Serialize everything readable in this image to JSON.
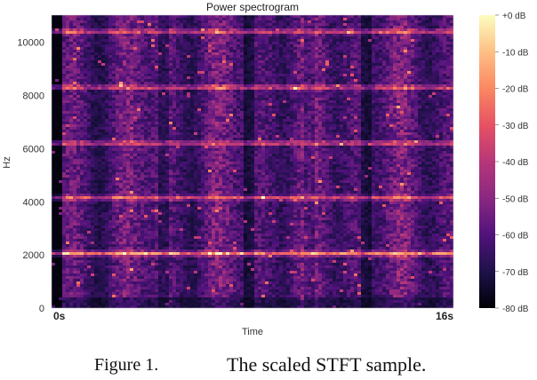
{
  "chart_data": {
    "type": "heatmap",
    "title": "Power spectrogram",
    "xlabel": "Time",
    "ylabel": "Hz",
    "x_ticks": [
      "0s",
      "16s"
    ],
    "xlim": [
      0,
      16
    ],
    "y_ticks": [
      0,
      2000,
      4000,
      6000,
      8000,
      10000
    ],
    "ylim": [
      0,
      11025
    ],
    "colorbar": {
      "ticks": [
        "+0 dB",
        "-10 dB",
        "-20 dB",
        "-30 dB",
        "-40 dB",
        "-50 dB",
        "-60 dB",
        "-70 dB",
        "-80 dB"
      ],
      "range_db": [
        -80,
        0
      ],
      "colormap": "magma"
    },
    "harmonic_bands_hz": [
      2050,
      4150,
      6200,
      8300,
      10400
    ],
    "onset_times_s": [
      4.5,
      7.8,
      10.3,
      12.5
    ]
  },
  "colors": {
    "background": "#ffffff",
    "colormap_low": "#000004",
    "colormap_mid": "#b5367a",
    "colormap_high": "#fcfdbf"
  },
  "caption": {
    "label": "Figure 1.",
    "text": "The scaled STFT sample."
  }
}
